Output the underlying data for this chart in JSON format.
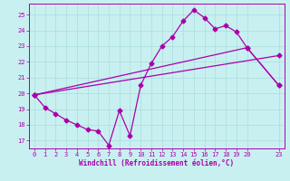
{
  "xlabel": "Windchill (Refroidissement éolien,°C)",
  "background_color": "#c8f0f0",
  "line_color": "#aa00aa",
  "grid_color": "#aadddd",
  "xlim": [
    -0.5,
    23.5
  ],
  "ylim": [
    16.5,
    25.7
  ],
  "xticks": [
    0,
    1,
    2,
    3,
    4,
    5,
    6,
    7,
    8,
    9,
    10,
    11,
    12,
    13,
    14,
    15,
    16,
    17,
    18,
    19,
    20,
    23
  ],
  "yticks": [
    17,
    18,
    19,
    20,
    21,
    22,
    23,
    24,
    25
  ],
  "line1_x": [
    0,
    1,
    2,
    3,
    4,
    5,
    6,
    7,
    8,
    9,
    10,
    11,
    12,
    13,
    14,
    15,
    16,
    17,
    18,
    19,
    20,
    23
  ],
  "line1_y": [
    19.9,
    19.1,
    18.7,
    18.3,
    18.0,
    17.7,
    17.6,
    16.7,
    18.9,
    17.3,
    20.5,
    21.9,
    23.0,
    23.6,
    24.6,
    25.3,
    24.8,
    24.1,
    24.3,
    23.9,
    22.9,
    20.5
  ],
  "line2_x": [
    0,
    23
  ],
  "line2_y": [
    19.9,
    22.4
  ],
  "line3_x": [
    0,
    20,
    23
  ],
  "line3_y": [
    19.9,
    22.9,
    20.5
  ],
  "markersize": 2.5,
  "linewidth": 0.9,
  "tick_fontsize": 5.0,
  "label_fontsize": 5.5
}
